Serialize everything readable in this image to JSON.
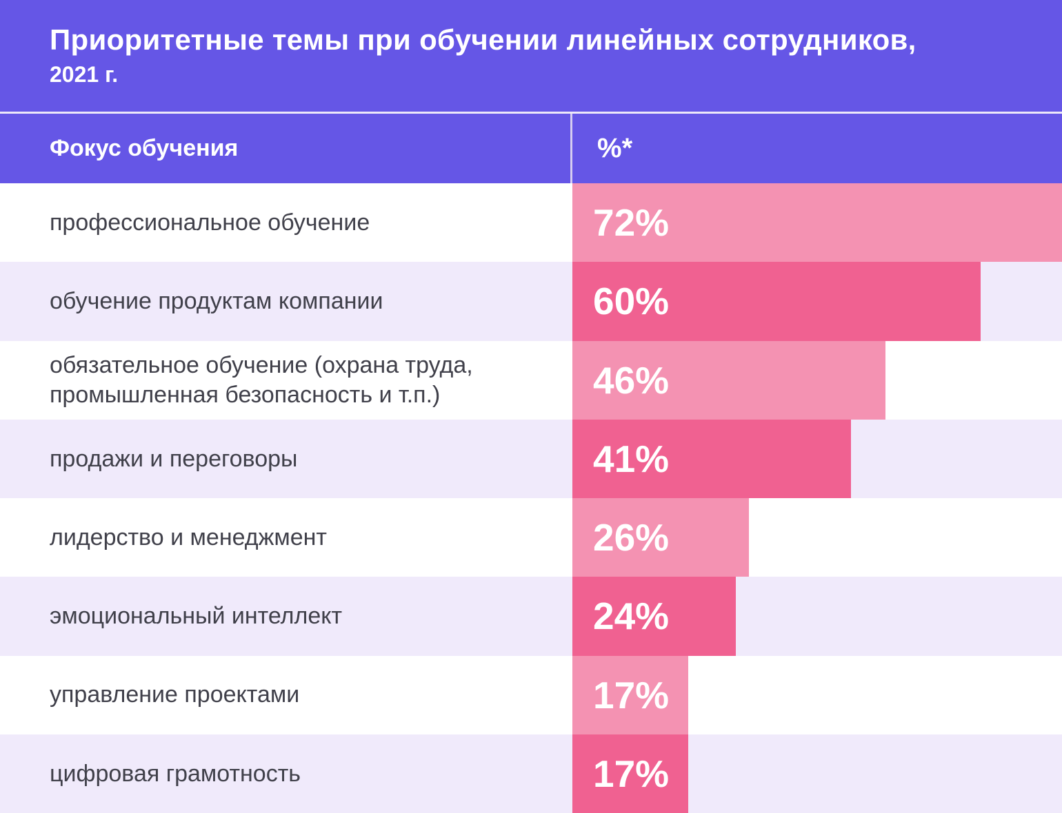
{
  "title": {
    "line1": "Приоритетные темы при обучении линейных сотрудников,",
    "line2": "2021 г."
  },
  "table": {
    "header": {
      "focus": "Фокус обучения",
      "percent": "%*"
    },
    "rows": [
      {
        "label": "профессиональное обучение",
        "value": 72,
        "pct": "72%"
      },
      {
        "label": "обучение продуктам компании",
        "value": 60,
        "pct": "60%"
      },
      {
        "label": "обязательное обучение (охрана труда, промышленная безопасность и т.п.)",
        "value": 46,
        "pct": "46%"
      },
      {
        "label": "продажи и переговоры",
        "value": 41,
        "pct": "41%"
      },
      {
        "label": "лидерство и менеджмент",
        "value": 26,
        "pct": "26%"
      },
      {
        "label": "эмоциональный интеллект",
        "value": 24,
        "pct": "24%"
      },
      {
        "label": "управление проектами",
        "value": 17,
        "pct": "17%"
      },
      {
        "label": "цифровая грамотность",
        "value": 17,
        "pct": "17%"
      }
    ]
  },
  "colors": {
    "purple": "#6556E6",
    "bar_light_pink": "#F492B2",
    "bar_dark_pink": "#F06191",
    "row_white": "#FFFFFF",
    "row_lavender": "#F0EAFB",
    "gap_line": "#EDE8F9",
    "header_divider": "#D5CDF0",
    "label_text": "#40404A",
    "value_text": "#FFFFFF"
  },
  "chart_data": {
    "type": "bar",
    "orientation": "horizontal",
    "title": "Приоритетные темы при обучении линейных сотрудников, 2021 г.",
    "column_headers": [
      "Фокус обучения",
      "%*"
    ],
    "categories": [
      "профессиональное обучение",
      "обучение продуктам компании",
      "обязательное обучение (охрана труда, промышленная безопасность и т.п.)",
      "продажи и переговоры",
      "лидерство и менеджмент",
      "эмоциональный интеллект",
      "управление проектами",
      "цифровая грамотность"
    ],
    "values": [
      72,
      60,
      46,
      41,
      26,
      24,
      17,
      17
    ],
    "value_format": "percent",
    "xlim": [
      0,
      72
    ],
    "grid": false,
    "legend": false,
    "bar_colors_alternate": [
      "#F492B2",
      "#F06191"
    ]
  }
}
